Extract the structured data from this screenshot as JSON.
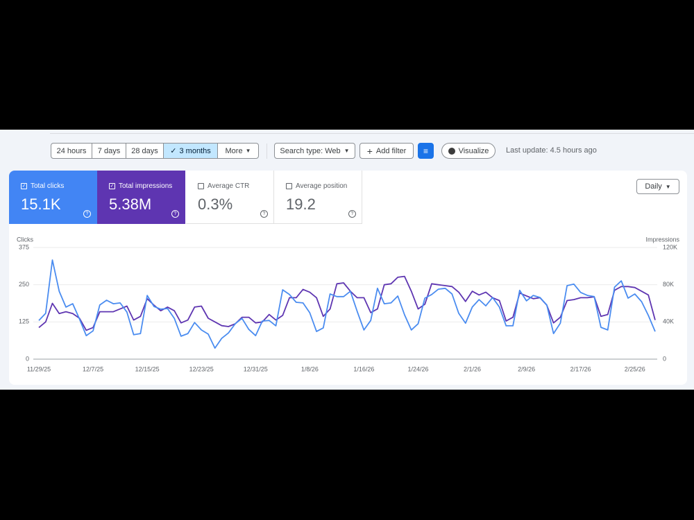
{
  "toolbar": {
    "ranges": [
      "24 hours",
      "7 days",
      "28 days",
      "3 months",
      "More"
    ],
    "search_type": "Search type: Web",
    "add_filter": "Add filter",
    "visualize": "Visualize",
    "last_update": "Last update: 4.5 hours ago"
  },
  "metrics": [
    {
      "label": "Total clicks",
      "value": "15.1K"
    },
    {
      "label": "Total impressions",
      "value": "5.38M"
    },
    {
      "label": "Average CTR",
      "value": "0.3%"
    },
    {
      "label": "Average position",
      "value": "19.2"
    }
  ],
  "granularity": "Daily",
  "chart_data": {
    "type": "line",
    "x": [
      "11/29/25",
      "11/30/25",
      "12/1/25",
      "12/2/25",
      "12/3/25",
      "12/4/25",
      "12/5/25",
      "12/6/25",
      "12/7/25",
      "12/8/25",
      "12/9/25",
      "12/10/25",
      "12/11/25",
      "12/12/25",
      "12/13/25",
      "12/14/25",
      "12/15/25",
      "12/16/25",
      "12/17/25",
      "12/18/25",
      "12/19/25",
      "12/20/25",
      "12/21/25",
      "12/22/25",
      "12/23/25",
      "12/24/25",
      "12/25/25",
      "12/26/25",
      "12/27/25",
      "12/28/25",
      "12/29/25",
      "12/30/25",
      "12/31/25",
      "1/1/26",
      "1/2/26",
      "1/3/26",
      "1/4/26",
      "1/5/26",
      "1/6/26",
      "1/7/26",
      "1/8/26",
      "1/9/26",
      "1/10/26",
      "1/11/26",
      "1/12/26",
      "1/13/26",
      "1/14/26",
      "1/15/26",
      "1/16/26",
      "1/17/26",
      "1/18/26",
      "1/19/26",
      "1/20/26",
      "1/21/26",
      "1/22/26",
      "1/23/26",
      "1/24/26",
      "1/25/26",
      "1/26/26",
      "1/27/26",
      "1/28/26",
      "1/29/26",
      "1/30/26",
      "1/31/26",
      "2/1/26",
      "2/2/26",
      "2/3/26",
      "2/4/26",
      "2/5/26",
      "2/6/26",
      "2/7/26",
      "2/8/26",
      "2/9/26",
      "2/10/26",
      "2/11/26",
      "2/12/26",
      "2/13/26",
      "2/14/26",
      "2/15/26",
      "2/16/26",
      "2/17/26",
      "2/18/26",
      "2/19/26",
      "2/20/26",
      "2/21/26",
      "2/22/26",
      "2/23/26",
      "2/24/26",
      "2/25/26",
      "2/26/26",
      "2/27/26",
      "2/28/26"
    ],
    "series": [
      {
        "name": "Clicks",
        "color": "#4a8cf0",
        "values": [
          130,
          154,
          333,
          228,
          175,
          186,
          135,
          79,
          95,
          182,
          198,
          186,
          189,
          158,
          82,
          86,
          214,
          177,
          168,
          170,
          137,
          77,
          86,
          123,
          98,
          84,
          37,
          70,
          88,
          119,
          137,
          100,
          79,
          128,
          130,
          112,
          233,
          217,
          191,
          189,
          156,
          93,
          105,
          219,
          210,
          210,
          228,
          161,
          98,
          130,
          238,
          186,
          189,
          212,
          149,
          98,
          119,
          205,
          217,
          235,
          238,
          219,
          154,
          121,
          175,
          200,
          179,
          207,
          175,
          112,
          112,
          231,
          196,
          214,
          207,
          182,
          86,
          121,
          247,
          252,
          224,
          214,
          210,
          107,
          98,
          242,
          263,
          205,
          219,
          193,
          147,
          93
        ]
      },
      {
        "name": "Impressions",
        "color": "#5e35b1",
        "axis": "y2",
        "values": [
          34000,
          40000,
          60000,
          49000,
          51000,
          49000,
          44000,
          31000,
          34000,
          51000,
          51000,
          51000,
          54000,
          57000,
          42000,
          46000,
          65000,
          58000,
          52000,
          56000,
          52000,
          39000,
          42000,
          56000,
          57000,
          44000,
          40000,
          36000,
          35000,
          38000,
          45000,
          45000,
          39000,
          40000,
          48000,
          42000,
          47000,
          66000,
          66000,
          75000,
          72000,
          66000,
          46000,
          54000,
          81000,
          82000,
          73000,
          66000,
          66000,
          50000,
          54000,
          80000,
          81000,
          88000,
          89000,
          73000,
          54000,
          59000,
          81000,
          80000,
          79000,
          78000,
          72000,
          62000,
          73000,
          69000,
          72000,
          66000,
          63000,
          41000,
          45000,
          71000,
          68000,
          65000,
          66000,
          58000,
          39000,
          45000,
          63000,
          64000,
          66000,
          66000,
          67000,
          46000,
          48000,
          74000,
          78000,
          78000,
          77000,
          73000,
          69000,
          42000
        ]
      }
    ],
    "ylim": [
      0,
      375
    ],
    "yticks": [
      0,
      125,
      250,
      375
    ],
    "y2lim": [
      0,
      120000
    ],
    "y2ticks": [
      0,
      {
        "value": 40000,
        "label": "40K"
      },
      {
        "value": 80000,
        "label": "80K"
      },
      {
        "value": 120000,
        "label": "120K"
      }
    ],
    "grid": true
  }
}
